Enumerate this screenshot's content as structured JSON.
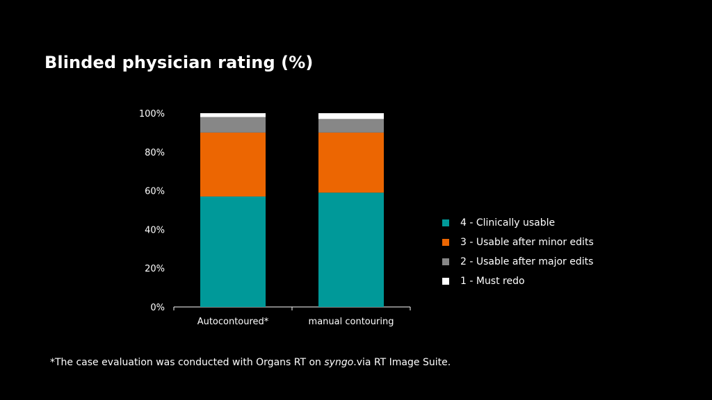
{
  "chart_data": {
    "type": "bar",
    "stacked": true,
    "title": "Blinded physician rating (%)",
    "categories": [
      "Autocontoured*",
      "manual contouring"
    ],
    "series": [
      {
        "name": "4 - Clinically usable",
        "color": "#009999",
        "values": [
          57,
          59
        ]
      },
      {
        "name": "3 - Usable after minor edits",
        "color": "#EC6602",
        "values": [
          33,
          31
        ]
      },
      {
        "name": "2 - Usable after major edits",
        "color": "#878787",
        "values": [
          8,
          7
        ]
      },
      {
        "name": "1 - Must redo",
        "color": "#FFFFFF",
        "values": [
          2,
          3
        ]
      }
    ],
    "ylim": [
      0,
      100
    ],
    "yticks": [
      "0%",
      "20%",
      "40%",
      "60%",
      "80%",
      "100%"
    ],
    "xlabel": "",
    "ylabel": "",
    "legend": "right"
  },
  "footnote": {
    "prefix": "*The case evaluation was conducted with Organs RT on ",
    "emphasis": "syngo",
    "suffix": ".via RT Image Suite."
  }
}
